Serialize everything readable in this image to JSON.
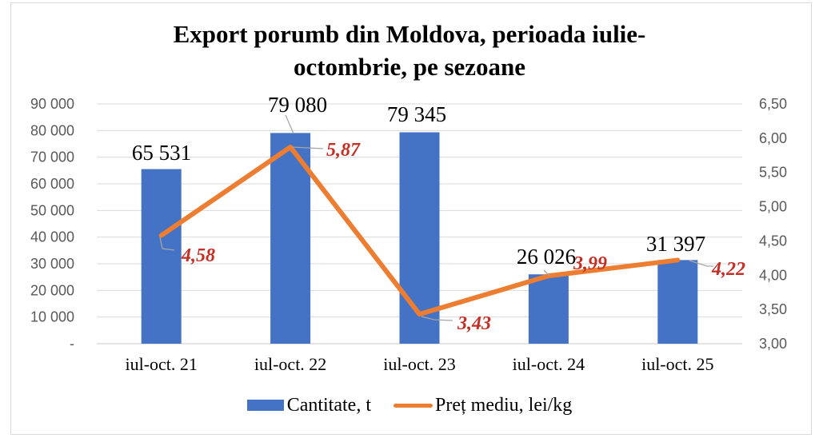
{
  "header": {
    "title_line1": "Export porumb din Moldova, perioada iulie-",
    "title_line2": "octombrie, pe sezoane"
  },
  "chart_data": {
    "type": "combo",
    "title": "Export porumb din Moldova, perioada iulie-octombrie, pe sezoane",
    "categories": [
      "iul-oct. 21",
      "iul-oct. 22",
      "iul-oct. 23",
      "iul-oct. 24",
      "iul-oct. 25"
    ],
    "series": [
      {
        "name": "Cantitate, t",
        "type": "bar",
        "axis": "left",
        "color": "#4472C4",
        "values": [
          65531,
          79080,
          79345,
          26026,
          31397
        ],
        "labels": [
          "65 531",
          "79 080",
          "79 345",
          "26 026",
          "31 397"
        ],
        "label_color": "#000000"
      },
      {
        "name": "Preț mediu, lei/kg",
        "type": "line",
        "axis": "right",
        "color": "#ED7D31",
        "values": [
          4.58,
          5.87,
          3.43,
          3.99,
          4.22
        ],
        "labels": [
          "4,58",
          "5,87",
          "3,43",
          "3,99",
          "4,22"
        ],
        "label_color": "#C52E25"
      }
    ],
    "left_axis": {
      "min": 0,
      "max": 90000,
      "step": 10000,
      "tick_labels": [
        "90 000",
        "80 000",
        "70 000",
        "60 000",
        "50 000",
        "40 000",
        "30 000",
        "20 000",
        "10 000",
        "-"
      ]
    },
    "right_axis": {
      "min": 3.0,
      "max": 6.5,
      "step": 0.5,
      "tick_labels": [
        "6,50",
        "6,00",
        "5,50",
        "5,00",
        "4,50",
        "4,00",
        "3,50",
        "3,00"
      ]
    },
    "legend": {
      "position": "bottom"
    },
    "grid": true
  },
  "colors": {
    "bar": "#4472C4",
    "line": "#ED7D31",
    "price_label": "#C52E25",
    "axis_text": "#595959",
    "gridline": "#D9D9D9",
    "axis_line": "#C8C8C8",
    "leader": "#A6A6A6",
    "border": "#D9D9D9"
  }
}
